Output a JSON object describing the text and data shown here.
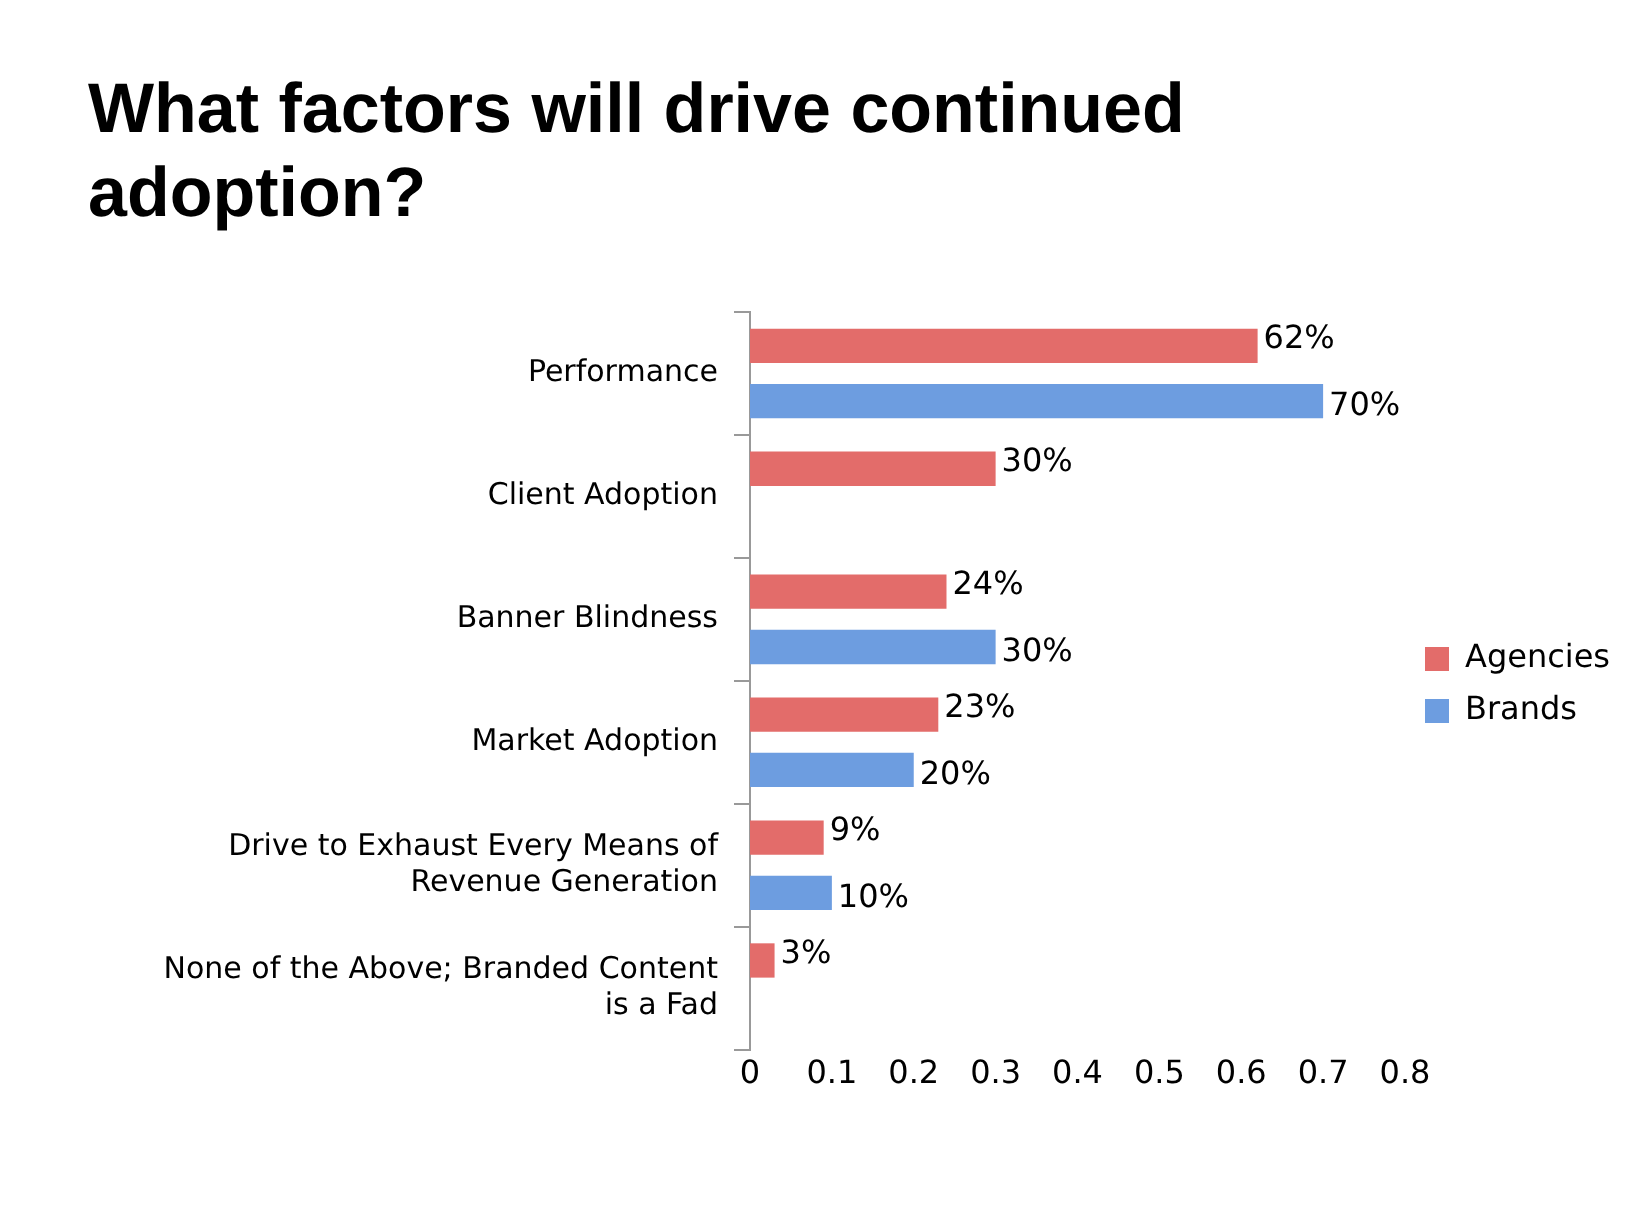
{
  "chart_data": {
    "type": "bar",
    "orientation": "horizontal",
    "title": "What factors will drive continued adoption?",
    "categories": [
      "Performance",
      "Client Adoption",
      "Banner Blindness",
      "Market Adoption",
      "Drive to Exhaust Every Means of Revenue Generation",
      "None of the Above; Branded Content is a Fad"
    ],
    "series": [
      {
        "name": "Agencies",
        "color": "#e36c6a",
        "values": [
          0.62,
          0.3,
          0.24,
          0.23,
          0.09,
          0.03
        ],
        "value_labels": [
          "62%",
          "30%",
          "24%",
          "23%",
          "9%",
          "3%"
        ]
      },
      {
        "name": "Brands",
        "color": "#6d9de0",
        "values": [
          0.7,
          null,
          0.3,
          0.2,
          0.1,
          null
        ],
        "value_labels": [
          "70%",
          null,
          "30%",
          "20%",
          "10%",
          null
        ]
      }
    ],
    "xlim": [
      0,
      0.8
    ],
    "xticks": [
      0,
      0.1,
      0.2,
      0.3,
      0.4,
      0.5,
      0.6,
      0.7,
      0.8
    ],
    "grid": false,
    "legend": "right"
  }
}
